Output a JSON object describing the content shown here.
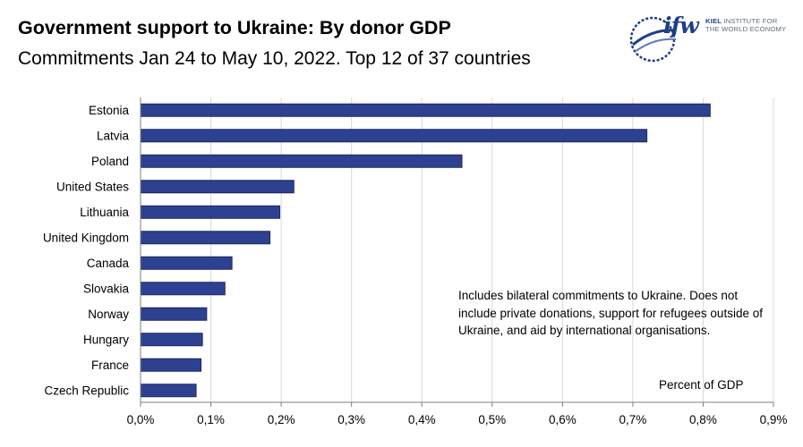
{
  "header": {
    "title": "Government support to Ukraine: By donor GDP",
    "subtitle": "Commitments Jan 24 to May 10, 2022. Top 12 of 37 countries"
  },
  "logo": {
    "mark": "ifw",
    "line1_bold": "KIEL",
    "line1_rest": " INSTITUTE FOR",
    "line2": "THE WORLD ECONOMY"
  },
  "note": "Includes bilateral commitments to Ukraine. Does not include private donations, support for refugees outside of Ukraine, and aid by international organisations.",
  "unit_label": "Percent of GDP",
  "colors": {
    "bar": "#2e4190",
    "bar_outline": "#1a2766",
    "grid": "#d9d9d9",
    "axis": "#7f7f7f"
  },
  "chart_data": {
    "type": "bar",
    "orientation": "horizontal",
    "categories": [
      "Estonia",
      "Latvia",
      "Poland",
      "United States",
      "Lithuania",
      "United Kingdom",
      "Canada",
      "Slovakia",
      "Norway",
      "Hungary",
      "France",
      "Czech Republic"
    ],
    "values": [
      0.81,
      0.72,
      0.457,
      0.218,
      0.198,
      0.184,
      0.13,
      0.12,
      0.094,
      0.088,
      0.086,
      0.079
    ],
    "xlim": [
      0,
      0.9
    ],
    "xticks": [
      0,
      0.1,
      0.2,
      0.3,
      0.4,
      0.5,
      0.6,
      0.7,
      0.8,
      0.9
    ],
    "xtick_labels": [
      "0,0%",
      "0,1%",
      "0,2%",
      "0,3%",
      "0,4%",
      "0,5%",
      "0,6%",
      "0,7%",
      "0,8%",
      "0,9%"
    ],
    "xlabel": "Percent of GDP",
    "grid": true,
    "legend": false
  }
}
